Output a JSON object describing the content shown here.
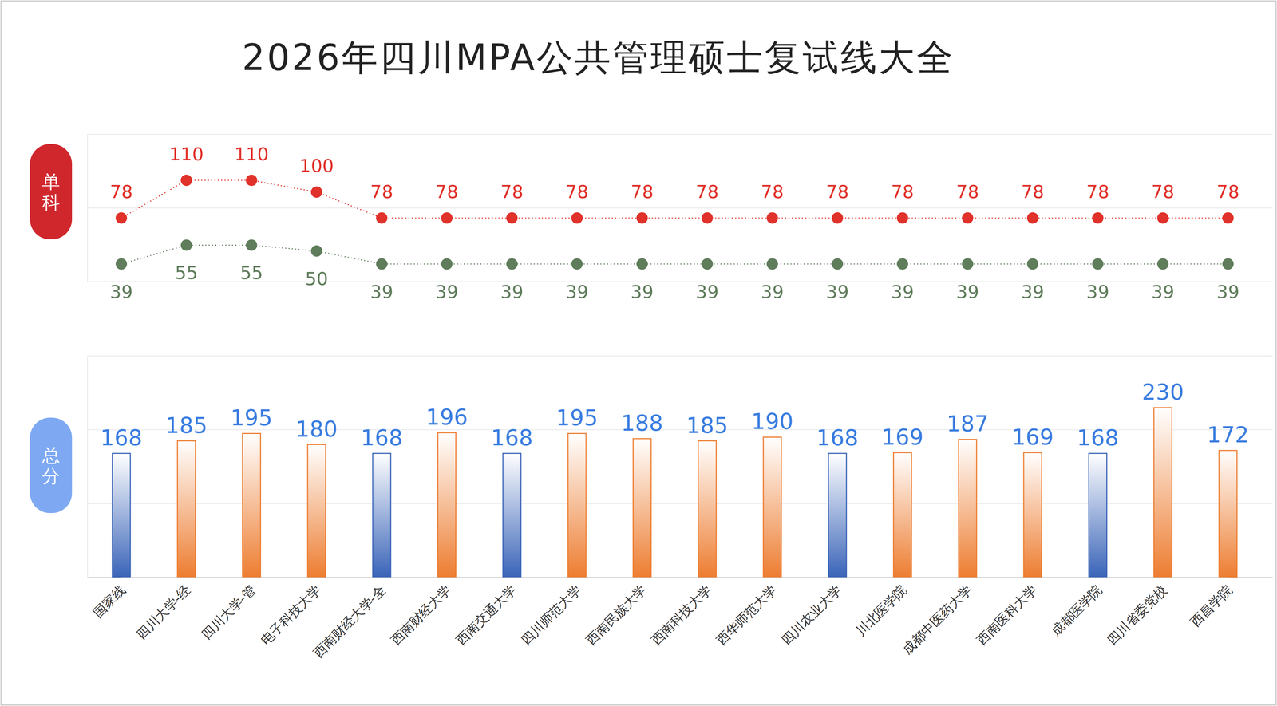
{
  "title": "2026年四川MPA公共管理硕士复试线大全",
  "chart_data": [
    {
      "type": "line",
      "title": "单科",
      "ylim": [
        24,
        149
      ],
      "yticks": [
        24,
        86.5,
        149
      ],
      "grid": true,
      "tick_labels": false,
      "data_labels": true,
      "series": [
        {
          "color": "#e0312a",
          "marker": "circle",
          "line_style": "dotted",
          "values": [
            78,
            110,
            110,
            100,
            78,
            78,
            78,
            78,
            78,
            78,
            78,
            78,
            78,
            78,
            78,
            78,
            78,
            78
          ]
        },
        {
          "color": "#5f7d5b",
          "marker": "circle",
          "line_style": "dotted",
          "values": [
            39,
            55,
            55,
            50,
            39,
            39,
            39,
            39,
            39,
            39,
            39,
            39,
            39,
            39,
            39,
            39,
            39,
            39
          ]
        }
      ]
    },
    {
      "type": "bar",
      "title": "总分",
      "categories": [
        "国家线",
        "四川大学-经",
        "四川大学-管",
        "电子科技大学",
        "西南财经大学-全",
        "西南财经大学",
        "西南交通大学",
        "四川师范大学",
        "西南民族大学",
        "西南科技大学",
        "西华师范大学",
        "四川农业大学",
        "川北医学院",
        "成都中医药大学",
        "西南医科大学",
        "成都医学院",
        "四川省委党校",
        "西昌学院"
      ],
      "values": [
        168,
        185,
        195,
        180,
        168,
        196,
        168,
        195,
        188,
        185,
        190,
        168,
        169,
        187,
        169,
        168,
        230,
        172
      ],
      "colors": [
        "#3a64b8",
        "#ed7d31",
        "#ed7d31",
        "#ed7d31",
        "#3a64b8",
        "#ed7d31",
        "#3a64b8",
        "#ed7d31",
        "#ed7d31",
        "#ed7d31",
        "#ed7d31",
        "#3a64b8",
        "#ed7d31",
        "#ed7d31",
        "#ed7d31",
        "#3a64b8",
        "#ed7d31",
        "#ed7d31"
      ],
      "ylim": [
        0,
        300
      ],
      "yticks": [
        0,
        100,
        200,
        300
      ],
      "grid": true,
      "tick_labels": "x",
      "data_labels": true
    }
  ]
}
